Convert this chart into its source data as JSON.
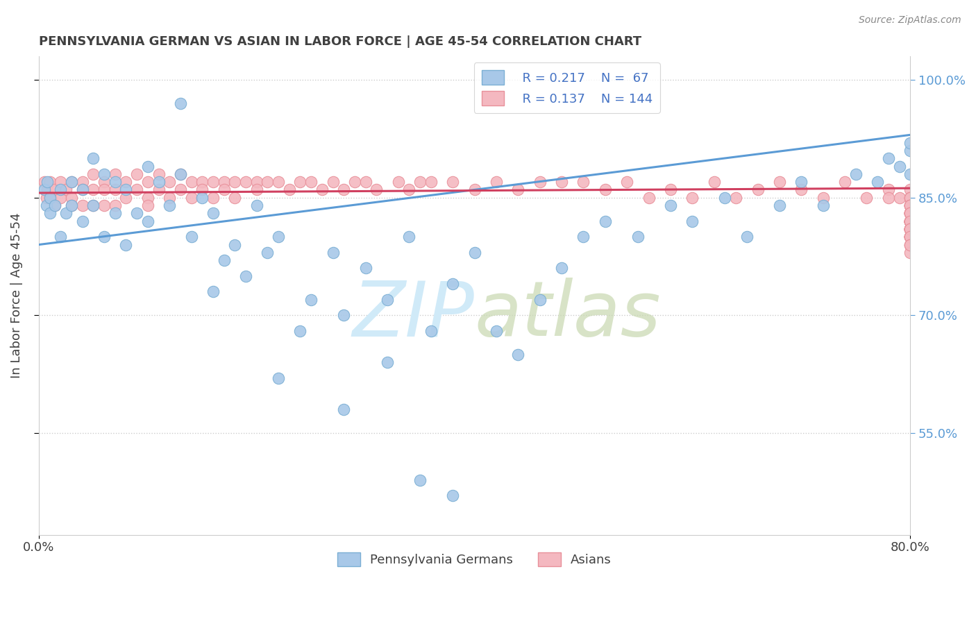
{
  "title": "PENNSYLVANIA GERMAN VS ASIAN IN LABOR FORCE | AGE 45-54 CORRELATION CHART",
  "source": "Source: ZipAtlas.com",
  "ylabel": "In Labor Force | Age 45-54",
  "xlim": [
    0.0,
    0.8
  ],
  "ylim": [
    0.42,
    1.03
  ],
  "yticks": [
    0.55,
    0.7,
    0.85,
    1.0
  ],
  "ytick_labels": [
    "55.0%",
    "70.0%",
    "85.0%",
    "100.0%"
  ],
  "xticks": [
    0.0,
    0.8
  ],
  "xtick_labels": [
    "0.0%",
    "80.0%"
  ],
  "legend_r1": "R = 0.217",
  "legend_n1": "N =  67",
  "legend_r2": "R = 0.137",
  "legend_n2": "N = 144",
  "blue_color": "#a8c8e8",
  "blue_edge": "#7bafd4",
  "pink_color": "#f4b8c0",
  "pink_edge": "#e8909a",
  "line_blue": "#5b9bd5",
  "line_pink": "#d04060",
  "watermark_color": "#d0eaf8",
  "bg_color": "#ffffff",
  "grid_color": "#cccccc",
  "title_color": "#404040",
  "right_axis_color": "#5b9bd5",
  "legend_text_color": "#4472c4",
  "blue_x": [
    0.005,
    0.007,
    0.008,
    0.01,
    0.01,
    0.015,
    0.02,
    0.02,
    0.025,
    0.03,
    0.03,
    0.04,
    0.04,
    0.05,
    0.05,
    0.06,
    0.06,
    0.07,
    0.07,
    0.08,
    0.08,
    0.09,
    0.1,
    0.1,
    0.11,
    0.12,
    0.13,
    0.14,
    0.15,
    0.16,
    0.17,
    0.18,
    0.19,
    0.2,
    0.21,
    0.22,
    0.24,
    0.25,
    0.27,
    0.28,
    0.3,
    0.32,
    0.34,
    0.36,
    0.38,
    0.4,
    0.42,
    0.44,
    0.46,
    0.48,
    0.5,
    0.52,
    0.55,
    0.58,
    0.6,
    0.63,
    0.65,
    0.68,
    0.7,
    0.72,
    0.75,
    0.77,
    0.78,
    0.79,
    0.8,
    0.8,
    0.8
  ],
  "blue_y": [
    0.86,
    0.84,
    0.87,
    0.85,
    0.83,
    0.84,
    0.86,
    0.8,
    0.83,
    0.87,
    0.84,
    0.86,
    0.82,
    0.9,
    0.84,
    0.88,
    0.8,
    0.87,
    0.83,
    0.86,
    0.79,
    0.83,
    0.89,
    0.82,
    0.87,
    0.84,
    0.88,
    0.8,
    0.85,
    0.83,
    0.77,
    0.79,
    0.75,
    0.84,
    0.78,
    0.8,
    0.68,
    0.72,
    0.78,
    0.7,
    0.76,
    0.72,
    0.8,
    0.68,
    0.74,
    0.78,
    0.68,
    0.65,
    0.72,
    0.76,
    0.8,
    0.82,
    0.8,
    0.84,
    0.82,
    0.85,
    0.8,
    0.84,
    0.87,
    0.84,
    0.88,
    0.87,
    0.9,
    0.89,
    0.91,
    0.88,
    0.92
  ],
  "blue_y_outliers": [
    0.97,
    0.73,
    0.62,
    0.58,
    0.64,
    0.49,
    0.47
  ],
  "blue_x_outliers": [
    0.13,
    0.16,
    0.22,
    0.28,
    0.32,
    0.35,
    0.38
  ],
  "pink_x": [
    0.005,
    0.007,
    0.008,
    0.01,
    0.01,
    0.015,
    0.015,
    0.02,
    0.02,
    0.025,
    0.03,
    0.03,
    0.03,
    0.04,
    0.04,
    0.04,
    0.05,
    0.05,
    0.05,
    0.06,
    0.06,
    0.06,
    0.07,
    0.07,
    0.07,
    0.08,
    0.08,
    0.09,
    0.09,
    0.1,
    0.1,
    0.1,
    0.11,
    0.11,
    0.12,
    0.12,
    0.13,
    0.13,
    0.14,
    0.14,
    0.15,
    0.15,
    0.16,
    0.16,
    0.17,
    0.17,
    0.18,
    0.18,
    0.19,
    0.2,
    0.2,
    0.21,
    0.22,
    0.23,
    0.24,
    0.25,
    0.26,
    0.27,
    0.28,
    0.29,
    0.3,
    0.31,
    0.33,
    0.34,
    0.35,
    0.36,
    0.38,
    0.4,
    0.42,
    0.44,
    0.46,
    0.48,
    0.5,
    0.52,
    0.54,
    0.56,
    0.58,
    0.6,
    0.62,
    0.64,
    0.66,
    0.68,
    0.7,
    0.72,
    0.74,
    0.76,
    0.78,
    0.78,
    0.79,
    0.8,
    0.8,
    0.8,
    0.8,
    0.8,
    0.8,
    0.8,
    0.8,
    0.8,
    0.8,
    0.8,
    0.8,
    0.8,
    0.8,
    0.8,
    0.8,
    0.8,
    0.8,
    0.8,
    0.8,
    0.8,
    0.8,
    0.8,
    0.8,
    0.8,
    0.8,
    0.8,
    0.8,
    0.8,
    0.8,
    0.8,
    0.8,
    0.8,
    0.8,
    0.8,
    0.8,
    0.8,
    0.8,
    0.8,
    0.8,
    0.8,
    0.8,
    0.8,
    0.8,
    0.8,
    0.8,
    0.8,
    0.8,
    0.8,
    0.8,
    0.8,
    0.8,
    0.8
  ],
  "pink_y": [
    0.87,
    0.85,
    0.86,
    0.87,
    0.85,
    0.86,
    0.84,
    0.87,
    0.85,
    0.86,
    0.87,
    0.85,
    0.84,
    0.87,
    0.86,
    0.84,
    0.88,
    0.86,
    0.84,
    0.87,
    0.86,
    0.84,
    0.88,
    0.86,
    0.84,
    0.87,
    0.85,
    0.88,
    0.86,
    0.87,
    0.85,
    0.84,
    0.88,
    0.86,
    0.87,
    0.85,
    0.88,
    0.86,
    0.87,
    0.85,
    0.87,
    0.86,
    0.87,
    0.85,
    0.87,
    0.86,
    0.87,
    0.85,
    0.87,
    0.87,
    0.86,
    0.87,
    0.87,
    0.86,
    0.87,
    0.87,
    0.86,
    0.87,
    0.86,
    0.87,
    0.87,
    0.86,
    0.87,
    0.86,
    0.87,
    0.87,
    0.87,
    0.86,
    0.87,
    0.86,
    0.87,
    0.87,
    0.87,
    0.86,
    0.87,
    0.85,
    0.86,
    0.85,
    0.87,
    0.85,
    0.86,
    0.87,
    0.86,
    0.85,
    0.87,
    0.85,
    0.86,
    0.85,
    0.85,
    0.86,
    0.85,
    0.84,
    0.85,
    0.84,
    0.85,
    0.84,
    0.83,
    0.84,
    0.83,
    0.84,
    0.82,
    0.83,
    0.82,
    0.83,
    0.82,
    0.81,
    0.82,
    0.81,
    0.83,
    0.82,
    0.81,
    0.8,
    0.82,
    0.81,
    0.8,
    0.81,
    0.82,
    0.8,
    0.81,
    0.83,
    0.82,
    0.81,
    0.8,
    0.84,
    0.82,
    0.8,
    0.81,
    0.82,
    0.8,
    0.83,
    0.81,
    0.82,
    0.8,
    0.83,
    0.82,
    0.81,
    0.79,
    0.81,
    0.8,
    0.79,
    0.78,
    0.79
  ],
  "blue_trend_x0": 0.0,
  "blue_trend_x1": 0.8,
  "blue_trend_y0": 0.79,
  "blue_trend_y1": 0.93,
  "pink_trend_x0": 0.0,
  "pink_trend_x1": 0.8,
  "pink_trend_y0": 0.856,
  "pink_trend_y1": 0.862
}
